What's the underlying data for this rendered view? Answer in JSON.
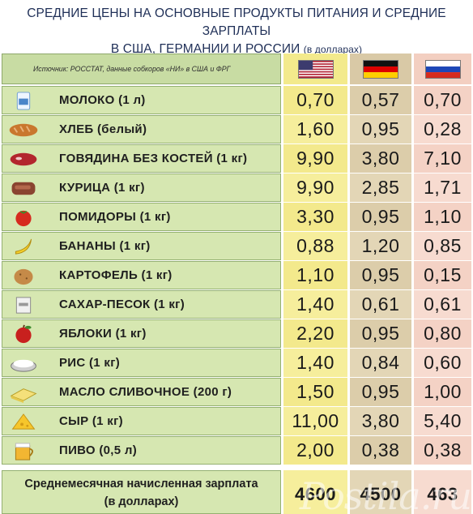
{
  "title": {
    "line1": "СРЕДНИЕ ЦЕНЫ НА ОСНОВНЫЕ ПРОДУКТЫ ПИТАНИЯ И СРЕДНИЕ ЗАРПЛАТЫ",
    "line2": "В США, ГЕРМАНИИ И РОССИИ",
    "unit": "(в долларах)"
  },
  "source": "Источник: РОССТАТ, данные собкоров «НИ» в США и ФРГ",
  "countries": [
    {
      "name": "usa",
      "flag": "usa-flag-icon"
    },
    {
      "name": "germany",
      "flag": "germany-flag-icon"
    },
    {
      "name": "russia",
      "flag": "russia-flag-icon"
    }
  ],
  "rows": [
    {
      "icon": "milk-icon",
      "name": "МОЛОКО (1 л)",
      "us": "0,70",
      "de": "0,57",
      "ru": "0,70"
    },
    {
      "icon": "bread-icon",
      "name": "ХЛЕБ (белый)",
      "us": "1,60",
      "de": "0,95",
      "ru": "0,28"
    },
    {
      "icon": "beef-icon",
      "name": "ГОВЯДИНА БЕЗ КОСТЕЙ (1 кг)",
      "us": "9,90",
      "de": "3,80",
      "ru": "7,10"
    },
    {
      "icon": "chicken-icon",
      "name": "КУРИЦА (1 кг)",
      "us": "9,90",
      "de": "2,85",
      "ru": "1,71"
    },
    {
      "icon": "tomato-icon",
      "name": "ПОМИДОРЫ (1 кг)",
      "us": "3,30",
      "de": "0,95",
      "ru": "1,10"
    },
    {
      "icon": "banana-icon",
      "name": "БАНАНЫ (1 кг)",
      "us": "0,88",
      "de": "1,20",
      "ru": "0,85"
    },
    {
      "icon": "potato-icon",
      "name": "КАРТОФЕЛЬ (1 кг)",
      "us": "1,10",
      "de": "0,95",
      "ru": "0,15"
    },
    {
      "icon": "sugar-icon",
      "name": "САХАР-ПЕСОК (1 кг)",
      "us": "1,40",
      "de": "0,61",
      "ru": "0,61"
    },
    {
      "icon": "apple-icon",
      "name": "ЯБЛОКИ (1 кг)",
      "us": "2,20",
      "de": "0,95",
      "ru": "0,80"
    },
    {
      "icon": "rice-icon",
      "name": "РИС (1 кг)",
      "us": "1,40",
      "de": "0,84",
      "ru": "0,60"
    },
    {
      "icon": "butter-icon",
      "name": "МАСЛО СЛИВОЧНОЕ (200 г)",
      "us": "1,50",
      "de": "0,95",
      "ru": "1,00"
    },
    {
      "icon": "cheese-icon",
      "name": "СЫР (1 кг)",
      "us": "11,00",
      "de": "3,80",
      "ru": "5,40"
    },
    {
      "icon": "beer-icon",
      "name": "ПИВО (0,5 л)",
      "us": "2,00",
      "de": "0,38",
      "ru": "0,38"
    }
  ],
  "salary": {
    "label1": "Среднемесячная начисленная зарплата",
    "label2": "(в долларах)",
    "us": "4600",
    "de": "4500",
    "ru": "463"
  },
  "watermark": "Postila.ru"
}
